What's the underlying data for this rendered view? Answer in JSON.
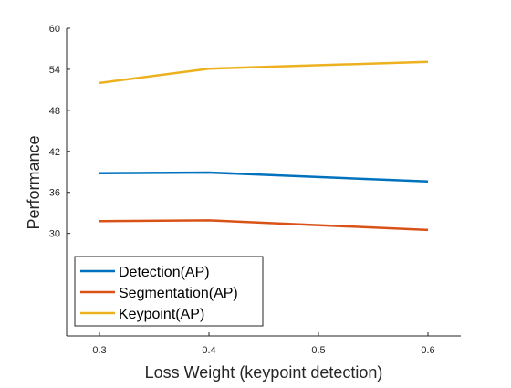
{
  "chart_data": {
    "type": "line",
    "title": "",
    "xlabel": "Loss Weight (keypoint detection)",
    "ylabel": "Performance",
    "x": [
      0.3,
      0.4,
      0.6
    ],
    "xticks": [
      "0.3",
      "0.4",
      "0.5",
      "0.6"
    ],
    "yticks": [
      "30",
      "36",
      "42",
      "48",
      "54",
      "60"
    ],
    "xlim": [
      0.27,
      0.63
    ],
    "ylim": [
      15,
      60
    ],
    "grid": false,
    "legend_position": "bottom-left",
    "series": [
      {
        "name": "Detection(AP)",
        "color": "#0072BD",
        "values": [
          38.8,
          38.9,
          37.6
        ]
      },
      {
        "name": "Segmentation(AP)",
        "color": "#D95319",
        "values": [
          31.8,
          31.9,
          30.5
        ]
      },
      {
        "name": "Keypoint(AP)",
        "color": "#EDB120",
        "values": [
          52.0,
          54.1,
          55.1
        ]
      }
    ]
  }
}
